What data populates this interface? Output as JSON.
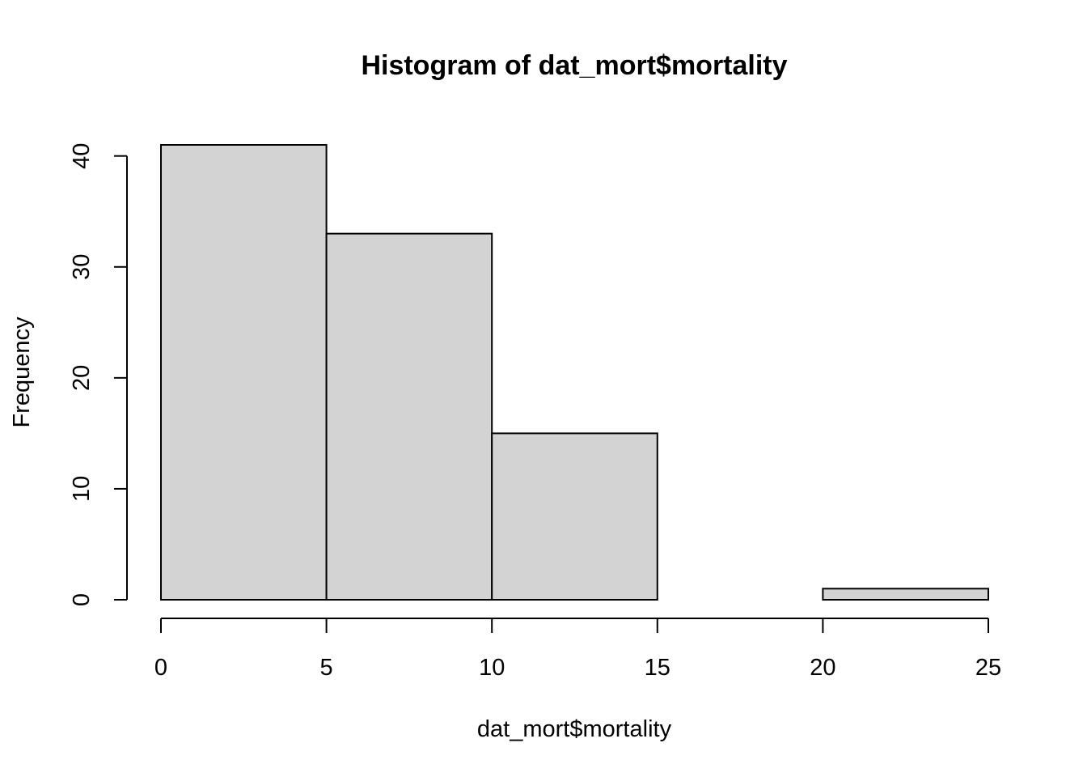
{
  "chart_data": {
    "type": "bar",
    "title": "Histogram of dat_mort$mortality",
    "xlabel": "dat_mort$mortality",
    "ylabel": "Frequency",
    "bins": [
      {
        "from": 0,
        "to": 5,
        "count": 41
      },
      {
        "from": 5,
        "to": 10,
        "count": 33
      },
      {
        "from": 10,
        "to": 15,
        "count": 15
      },
      {
        "from": 15,
        "to": 20,
        "count": 0
      },
      {
        "from": 20,
        "to": 25,
        "count": 1
      }
    ],
    "xlim": [
      0,
      25
    ],
    "ylim": [
      0,
      41
    ],
    "x_ticks": [
      0,
      5,
      10,
      15,
      20,
      25
    ],
    "y_ticks": [
      0,
      10,
      20,
      30,
      40
    ],
    "bar_color": "#d3d3d3",
    "grid": false,
    "legend": "none"
  }
}
